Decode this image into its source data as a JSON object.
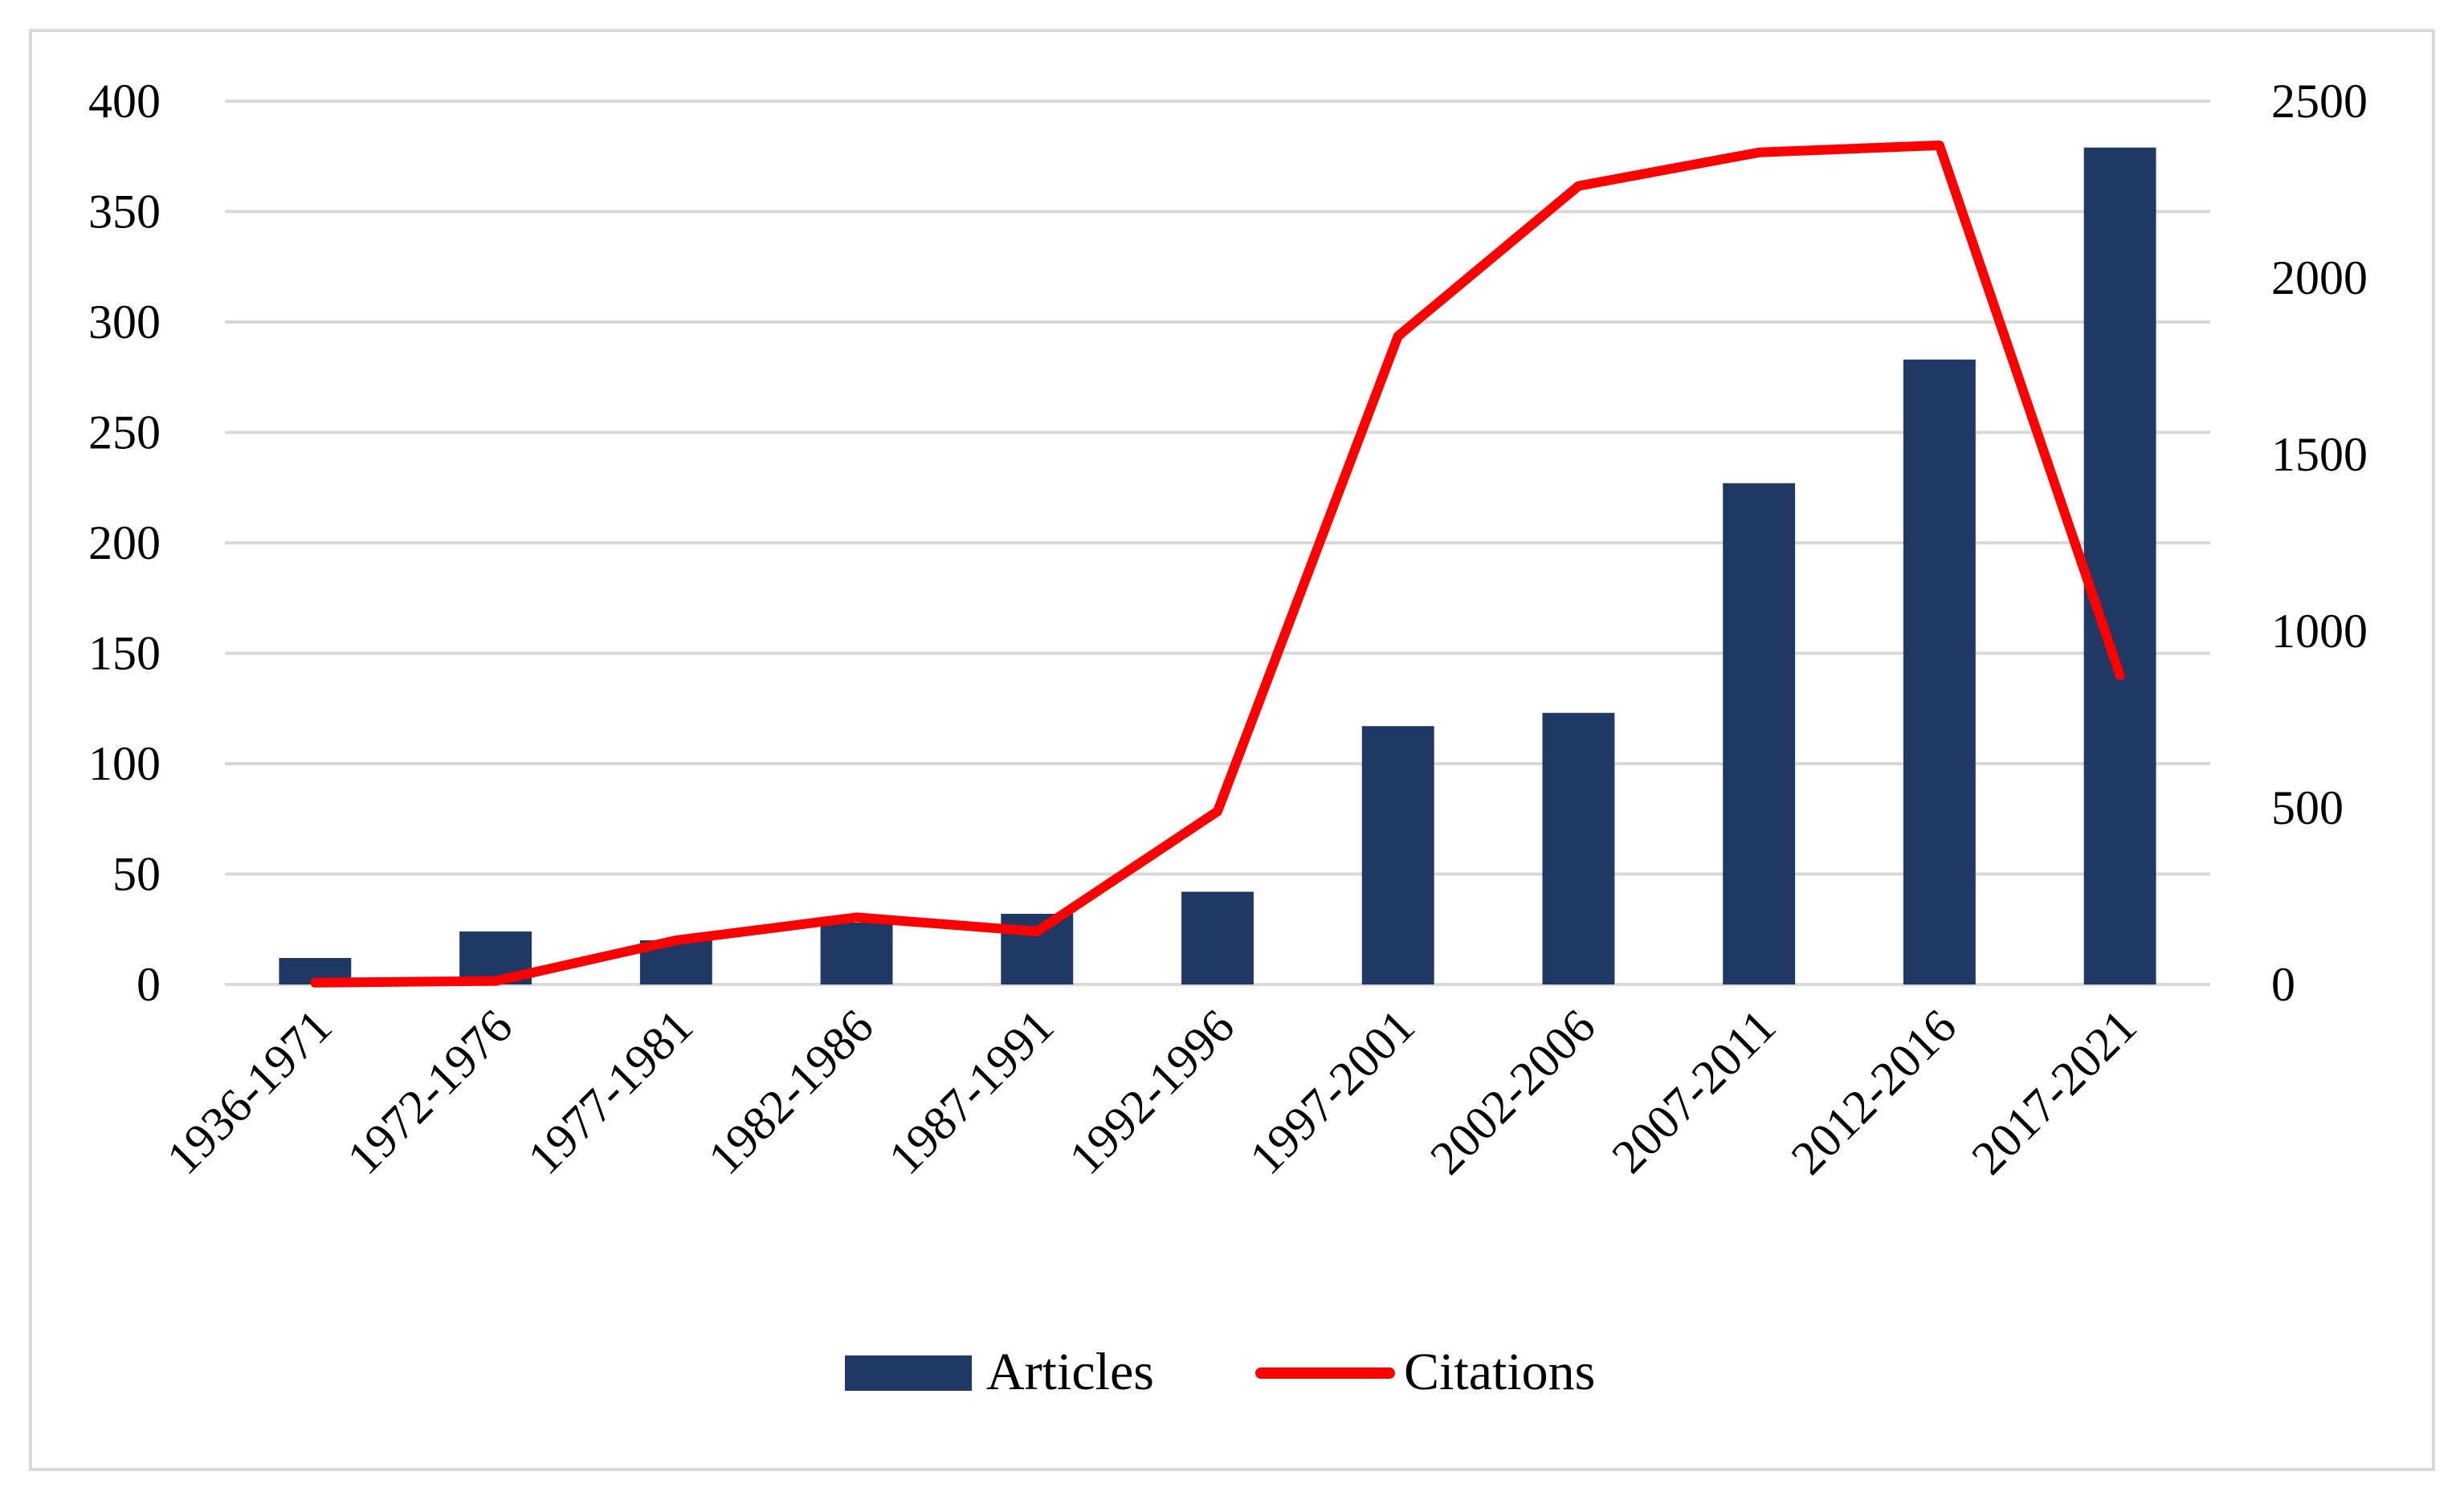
{
  "chart_data": {
    "type": "bar+line",
    "categories": [
      "1936-1971",
      "1972-1976",
      "1977-1981",
      "1982-1986",
      "1987-1991",
      "1992-1996",
      "1997-2001",
      "2002-2006",
      "2007-2011",
      "2012-2016",
      "2017-2021"
    ],
    "series": [
      {
        "name": "Articles",
        "type": "bar",
        "axis": "left",
        "color": "#203864",
        "values": [
          12,
          24,
          20,
          28,
          32,
          42,
          117,
          123,
          227,
          283,
          379
        ]
      },
      {
        "name": "Citations",
        "type": "line",
        "axis": "right",
        "color": "#ff0000",
        "values": [
          5,
          10,
          125,
          190,
          150,
          490,
          1835,
          2260,
          2355,
          2375,
          875
        ]
      }
    ],
    "y_left": {
      "min": 0,
      "max": 400,
      "ticks": [
        "0",
        "50",
        "100",
        "150",
        "200",
        "250",
        "300",
        "350",
        "400"
      ]
    },
    "y_right": {
      "min": 0,
      "max": 2500,
      "ticks": [
        "0",
        "500",
        "1000",
        "1500",
        "2000",
        "2500"
      ]
    },
    "grid": true,
    "legend_position": "bottom"
  }
}
